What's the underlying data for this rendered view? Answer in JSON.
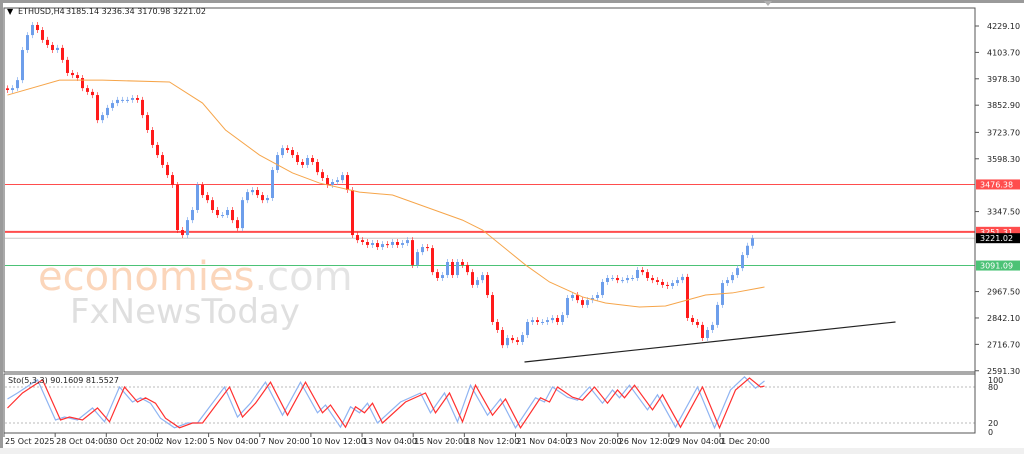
{
  "header": {
    "symbol": "ETHUSD,H4",
    "ohlc": "3185.14 3236.34 3170.98 3221.02"
  },
  "watermark": {
    "brand1": "economies",
    "brand1_suffix": ".com",
    "brand2": "FxNewsToday"
  },
  "colors": {
    "up": "#6d9eeb",
    "down": "#ff1a1a",
    "ma": "#f6a54a",
    "resistance": "#ff4d4d",
    "support": "#4cc276",
    "current": "#c8c8c8",
    "trendline": "#222222",
    "stoch_main": "#8fb4f2",
    "stoch_signal": "#ff3030"
  },
  "chart_data": [
    {
      "type": "candlestick",
      "title": "ETHUSD,H4",
      "ylim": [
        2560,
        4290
      ],
      "yticks": [
        "4229.10",
        "4103.70",
        "3978.30",
        "3852.90",
        "3723.70",
        "3598.30",
        "3347.50",
        "2967.50",
        "2842.10",
        "2716.70",
        "2591.30"
      ],
      "xticks": [
        "25 Oct 2025",
        "28 Oct 04:00",
        "30 Oct 20:00",
        "2 Nov 12:00",
        "5 Nov 04:00",
        "7 Nov 20:00",
        "10 Nov 12:00",
        "13 Nov 04:00",
        "15 Nov 20:00",
        "18 Nov 12:00",
        "21 Nov 04:00",
        "23 Nov 20:00",
        "26 Nov 12:00",
        "29 Nov 04:00",
        "1 Dec 20:00"
      ],
      "last_candle": {
        "open": 3185.14,
        "high": 3236.34,
        "low": 3170.98,
        "close": 3221.02
      },
      "closes": [
        3925,
        3934,
        3972,
        4115,
        4186,
        4234,
        4210,
        4163,
        4139,
        4115,
        4125,
        4068,
        4006,
        3996,
        3982,
        3934,
        3916,
        3901,
        3782,
        3806,
        3840,
        3863,
        3878,
        3878,
        3878,
        3887,
        3878,
        3806,
        3735,
        3664,
        3616,
        3569,
        3521,
        3474,
        3260,
        3236,
        3307,
        3355,
        3474,
        3426,
        3402,
        3355,
        3331,
        3331,
        3355,
        3307,
        3269,
        3402,
        3440,
        3450,
        3426,
        3402,
        3412,
        3545,
        3616,
        3649,
        3640,
        3616,
        3583,
        3569,
        3602,
        3583,
        3535,
        3507,
        3474,
        3488,
        3497,
        3521,
        3450,
        3236,
        3212,
        3203,
        3189,
        3198,
        3179,
        3193,
        3189,
        3203,
        3189,
        3198,
        3212,
        3094,
        3155,
        3179,
        3174,
        3060,
        3032,
        3046,
        3108,
        3046,
        3108,
        3094,
        3060,
        2999,
        3022,
        3046,
        2951,
        2823,
        2785,
        2713,
        2747,
        2737,
        2728,
        2761,
        2823,
        2832,
        2823,
        2823,
        2832,
        2842,
        2823,
        2856,
        2937,
        2951,
        2927,
        2904,
        2927,
        2937,
        2951,
        3013,
        3032,
        3032,
        3022,
        3022,
        3032,
        3032,
        3070,
        3060,
        3032,
        3022,
        3013,
        2999,
        2994,
        3008,
        3022,
        3037,
        2842,
        2823,
        2809,
        2747,
        2785,
        2809,
        2904,
        3008,
        3022,
        3046,
        3079,
        3141,
        3185.14,
        3221.02
      ],
      "moving_average": [
        [
          0,
          3901
        ],
        [
          10.4,
          3972
        ],
        [
          19,
          3972
        ],
        [
          32.4,
          3963
        ],
        [
          39,
          3863
        ],
        [
          43.6,
          3735
        ],
        [
          50.4,
          3616
        ],
        [
          57,
          3531
        ],
        [
          62.4,
          3483
        ],
        [
          70.4,
          3440
        ],
        [
          77,
          3426
        ],
        [
          91,
          3307
        ],
        [
          95,
          3260
        ],
        [
          103.6,
          3094
        ],
        [
          108.4,
          3013
        ],
        [
          115,
          2942
        ],
        [
          119.6,
          2913
        ],
        [
          126.4,
          2894
        ],
        [
          131.6,
          2899
        ],
        [
          139.6,
          2951
        ],
        [
          145,
          2961
        ],
        [
          151.4,
          2989
        ]
      ],
      "levels": [
        {
          "label": "3476.38",
          "value": 3476.38,
          "kind": "resistance"
        },
        {
          "label": "3251.31",
          "value": 3251.31,
          "kind": "resistance"
        },
        {
          "label": "3221.02",
          "value": 3221.02,
          "kind": "current"
        },
        {
          "label": "3091.09",
          "value": 3091.09,
          "kind": "support"
        }
      ],
      "trendline": [
        [
          103.4,
          2633
        ],
        [
          177.6,
          2823
        ]
      ]
    },
    {
      "type": "line",
      "title": "Sto(5,3,3) 90.1609 81.5527",
      "ylim": [
        0,
        100
      ],
      "yticks": [
        "100",
        "80",
        "20",
        "0"
      ],
      "levels": [
        80,
        20
      ],
      "main": [
        [
          0,
          60
        ],
        [
          2,
          70
        ],
        [
          6,
          92
        ],
        [
          9.6,
          25
        ],
        [
          11.4,
          30
        ],
        [
          14,
          25
        ],
        [
          17,
          45
        ],
        [
          19.4,
          22
        ],
        [
          22.4,
          80
        ],
        [
          25,
          55
        ],
        [
          26.6,
          62
        ],
        [
          28.6,
          53
        ],
        [
          30.6,
          28
        ],
        [
          33.4,
          12
        ],
        [
          36,
          20
        ],
        [
          38,
          20
        ],
        [
          43.4,
          80
        ],
        [
          46,
          30
        ],
        [
          48.6,
          53
        ],
        [
          51.6,
          88
        ],
        [
          55,
          33
        ],
        [
          58.6,
          88
        ],
        [
          62,
          37
        ],
        [
          63.6,
          50
        ],
        [
          66.6,
          13
        ],
        [
          68.6,
          47
        ],
        [
          70.4,
          37
        ],
        [
          72,
          53
        ],
        [
          74,
          20
        ],
        [
          78.6,
          55
        ],
        [
          82.6,
          70
        ],
        [
          84.6,
          37
        ],
        [
          87.4,
          70
        ],
        [
          90,
          22
        ],
        [
          92.6,
          83
        ],
        [
          96,
          33
        ],
        [
          98.6,
          60
        ],
        [
          101.6,
          12
        ],
        [
          105.6,
          62
        ],
        [
          107.4,
          55
        ],
        [
          109,
          80
        ],
        [
          112,
          63
        ],
        [
          114,
          58
        ],
        [
          116.4,
          80
        ],
        [
          119,
          53
        ],
        [
          121,
          75
        ],
        [
          122.4,
          62
        ],
        [
          124.4,
          83
        ],
        [
          128,
          42
        ],
        [
          130,
          67
        ],
        [
          133.6,
          13
        ],
        [
          138,
          80
        ],
        [
          141.4,
          12
        ],
        [
          144.6,
          75
        ],
        [
          147.4,
          97
        ],
        [
          149.6,
          78
        ],
        [
          151.4,
          90.16
        ]
      ],
      "signal": [
        [
          0,
          45
        ],
        [
          3,
          70
        ],
        [
          7,
          92
        ],
        [
          10.6,
          25
        ],
        [
          12.4,
          30
        ],
        [
          15,
          25
        ],
        [
          18,
          45
        ],
        [
          20.4,
          22
        ],
        [
          23.4,
          80
        ],
        [
          26,
          55
        ],
        [
          27.6,
          62
        ],
        [
          29.6,
          53
        ],
        [
          31.6,
          28
        ],
        [
          34.4,
          12
        ],
        [
          37,
          20
        ],
        [
          39,
          20
        ],
        [
          44.4,
          80
        ],
        [
          47,
          30
        ],
        [
          49.6,
          53
        ],
        [
          52.6,
          88
        ],
        [
          56,
          33
        ],
        [
          59.6,
          88
        ],
        [
          63,
          37
        ],
        [
          64.6,
          50
        ],
        [
          67.6,
          13
        ],
        [
          69.6,
          47
        ],
        [
          71.4,
          37
        ],
        [
          73,
          53
        ],
        [
          75,
          20
        ],
        [
          79.6,
          55
        ],
        [
          83.6,
          70
        ],
        [
          85.6,
          37
        ],
        [
          88.4,
          70
        ],
        [
          91,
          22
        ],
        [
          93.6,
          83
        ],
        [
          97,
          33
        ],
        [
          99.6,
          60
        ],
        [
          102.6,
          12
        ],
        [
          106.6,
          62
        ],
        [
          108.4,
          55
        ],
        [
          110,
          80
        ],
        [
          113,
          63
        ],
        [
          115,
          58
        ],
        [
          117.4,
          80
        ],
        [
          120,
          53
        ],
        [
          122,
          75
        ],
        [
          123.4,
          62
        ],
        [
          125.4,
          83
        ],
        [
          129,
          42
        ],
        [
          131,
          67
        ],
        [
          134.6,
          13
        ],
        [
          139,
          80
        ],
        [
          142.4,
          12
        ],
        [
          145.6,
          75
        ],
        [
          148.4,
          95
        ],
        [
          150.6,
          80
        ],
        [
          151.4,
          81.55
        ]
      ]
    }
  ]
}
